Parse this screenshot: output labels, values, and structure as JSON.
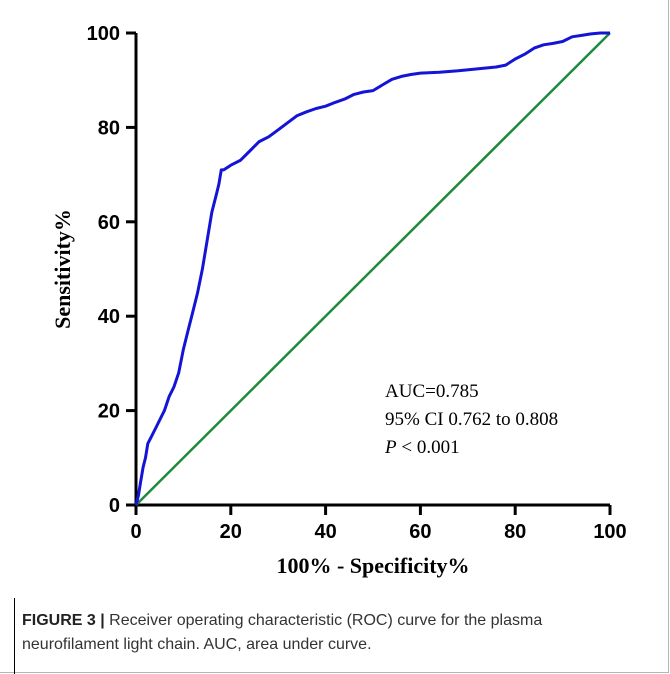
{
  "chart_data": {
    "type": "line",
    "title": "",
    "xlabel": "100% - Specificity%",
    "ylabel": "Sensitivity%",
    "xlim": [
      0,
      100
    ],
    "ylim": [
      0,
      100
    ],
    "xticks": [
      "0",
      "20",
      "40",
      "60",
      "80",
      "100"
    ],
    "yticks": [
      "0",
      "20",
      "40",
      "60",
      "80",
      "100"
    ],
    "grid": false,
    "series": [
      {
        "color": "#1414d6",
        "x": [
          0,
          0.5,
          1,
          1.5,
          2,
          2.5,
          3,
          4,
          5,
          6,
          7,
          8,
          9,
          10,
          11,
          12,
          13,
          14,
          15,
          16,
          17,
          17.5,
          18,
          18.5,
          20,
          22,
          24,
          26,
          28,
          30,
          32,
          34,
          36,
          38,
          40,
          42,
          44,
          46,
          48,
          50,
          52,
          54,
          56,
          58,
          60,
          64,
          68,
          72,
          76,
          78,
          80,
          82,
          84,
          86,
          88,
          90,
          92,
          94,
          96,
          98,
          100
        ],
        "y": [
          0,
          2,
          5,
          8,
          10,
          13,
          14,
          16,
          18,
          20,
          23,
          25,
          28,
          33,
          37,
          41,
          45,
          50,
          56,
          62,
          66,
          68,
          71,
          71,
          72,
          73,
          75,
          77,
          78,
          79.5,
          81,
          82.5,
          83.3,
          84,
          84.5,
          85.3,
          86,
          87,
          87.5,
          87.8,
          89,
          90.2,
          90.8,
          91.2,
          91.5,
          91.7,
          92,
          92.4,
          92.8,
          93.2,
          94.5,
          95.5,
          96.8,
          97.5,
          97.8,
          98.2,
          99.2,
          99.5,
          99.8,
          100,
          100
        ]
      },
      {
        "color": "#1f8a3c",
        "x": [
          0,
          100
        ],
        "y": [
          0,
          100
        ]
      }
    ],
    "annotations": [
      "AUC=0.785",
      "95% CI 0.762 to 0.808",
      "P",
      " < 0.001"
    ]
  },
  "caption": {
    "label": "FIGURE 3 |",
    "text": " Receiver operating characteristic (ROC) curve for the plasma neurofilament light chain. AUC, area under curve."
  }
}
